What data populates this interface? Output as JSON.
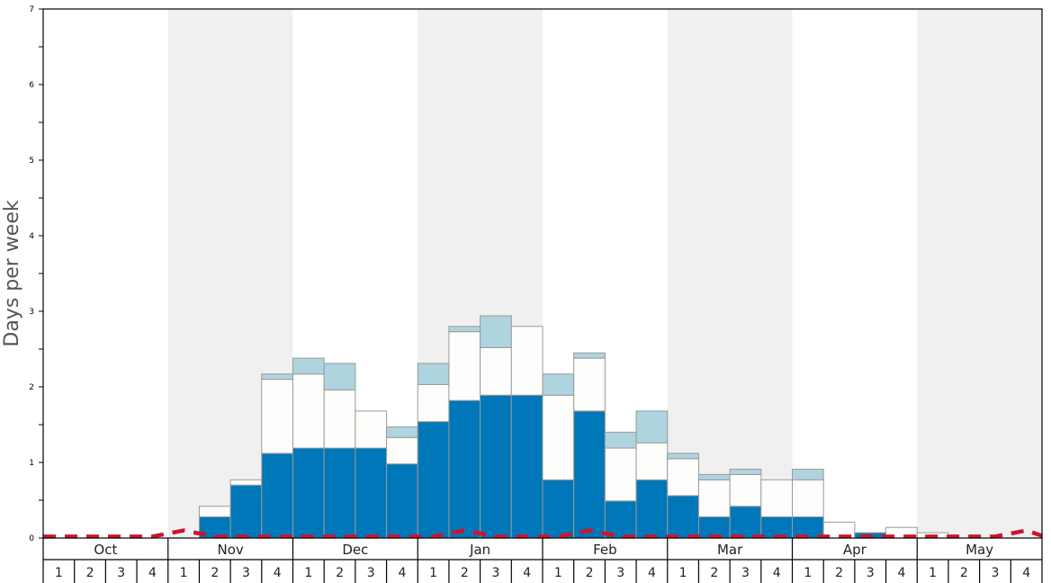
{
  "chart_data": {
    "type": "bar",
    "stacked": true,
    "ylabel": "Days per week",
    "ylim": [
      0,
      7
    ],
    "yticks": [
      "0",
      "1",
      "2",
      "3",
      "4",
      "5",
      "6",
      "7"
    ],
    "months": [
      "Oct",
      "Nov",
      "Dec",
      "Jan",
      "Feb",
      "Mar",
      "Apr",
      "May"
    ],
    "weeks_per_month": [
      "1",
      "2",
      "3",
      "4"
    ],
    "shaded_months": [
      "Nov",
      "Jan",
      "Mar",
      "May"
    ],
    "colors": {
      "bottom": "#0077b8",
      "middle": "#fdfdfb",
      "top": "#aed4e0",
      "band": "#f0f0f0",
      "trend": "#cc1430",
      "outline": "#9a9a9a"
    },
    "series": [
      {
        "values": [
          0,
          0,
          0,
          0,
          0,
          0.28,
          0.7,
          1.12,
          1.19,
          1.19,
          1.19,
          0.98,
          1.54,
          1.82,
          1.89,
          1.89,
          0.77,
          1.68,
          0.49,
          0.77,
          0.56,
          0.28,
          0.42,
          0.28,
          0.28,
          0,
          0.07,
          0,
          0,
          0,
          0,
          0
        ]
      },
      {
        "values": [
          0,
          0,
          0,
          0,
          0,
          0.14,
          0.07,
          0.98,
          0.98,
          0.77,
          0.49,
          0.35,
          0.49,
          0.91,
          0.63,
          0.91,
          1.12,
          0.7,
          0.7,
          0.49,
          0.49,
          0.49,
          0.42,
          0.49,
          0.49,
          0.21,
          0,
          0.14,
          0.07,
          0,
          0,
          0
        ]
      },
      {
        "values": [
          0,
          0,
          0,
          0,
          0,
          0,
          0,
          0.07,
          0.21,
          0.35,
          0,
          0.14,
          0.28,
          0.07,
          0.42,
          0,
          0.28,
          0.07,
          0.21,
          0.42,
          0.07,
          0.07,
          0.07,
          0,
          0.14,
          0,
          0,
          0,
          0,
          0,
          0,
          0
        ]
      },
      {
        "values": [
          0.02,
          0.02,
          0.02,
          0.02,
          0.1,
          0.02,
          0.02,
          0.02,
          0.02,
          0.02,
          0.02,
          0.02,
          0.02,
          0.1,
          0.02,
          0.02,
          0.02,
          0.1,
          0.02,
          0.02,
          0.02,
          0.02,
          0.02,
          0.02,
          0.02,
          0.02,
          0.02,
          0.02,
          0.02,
          0.02,
          0.02,
          0.1
        ]
      }
    ]
  }
}
